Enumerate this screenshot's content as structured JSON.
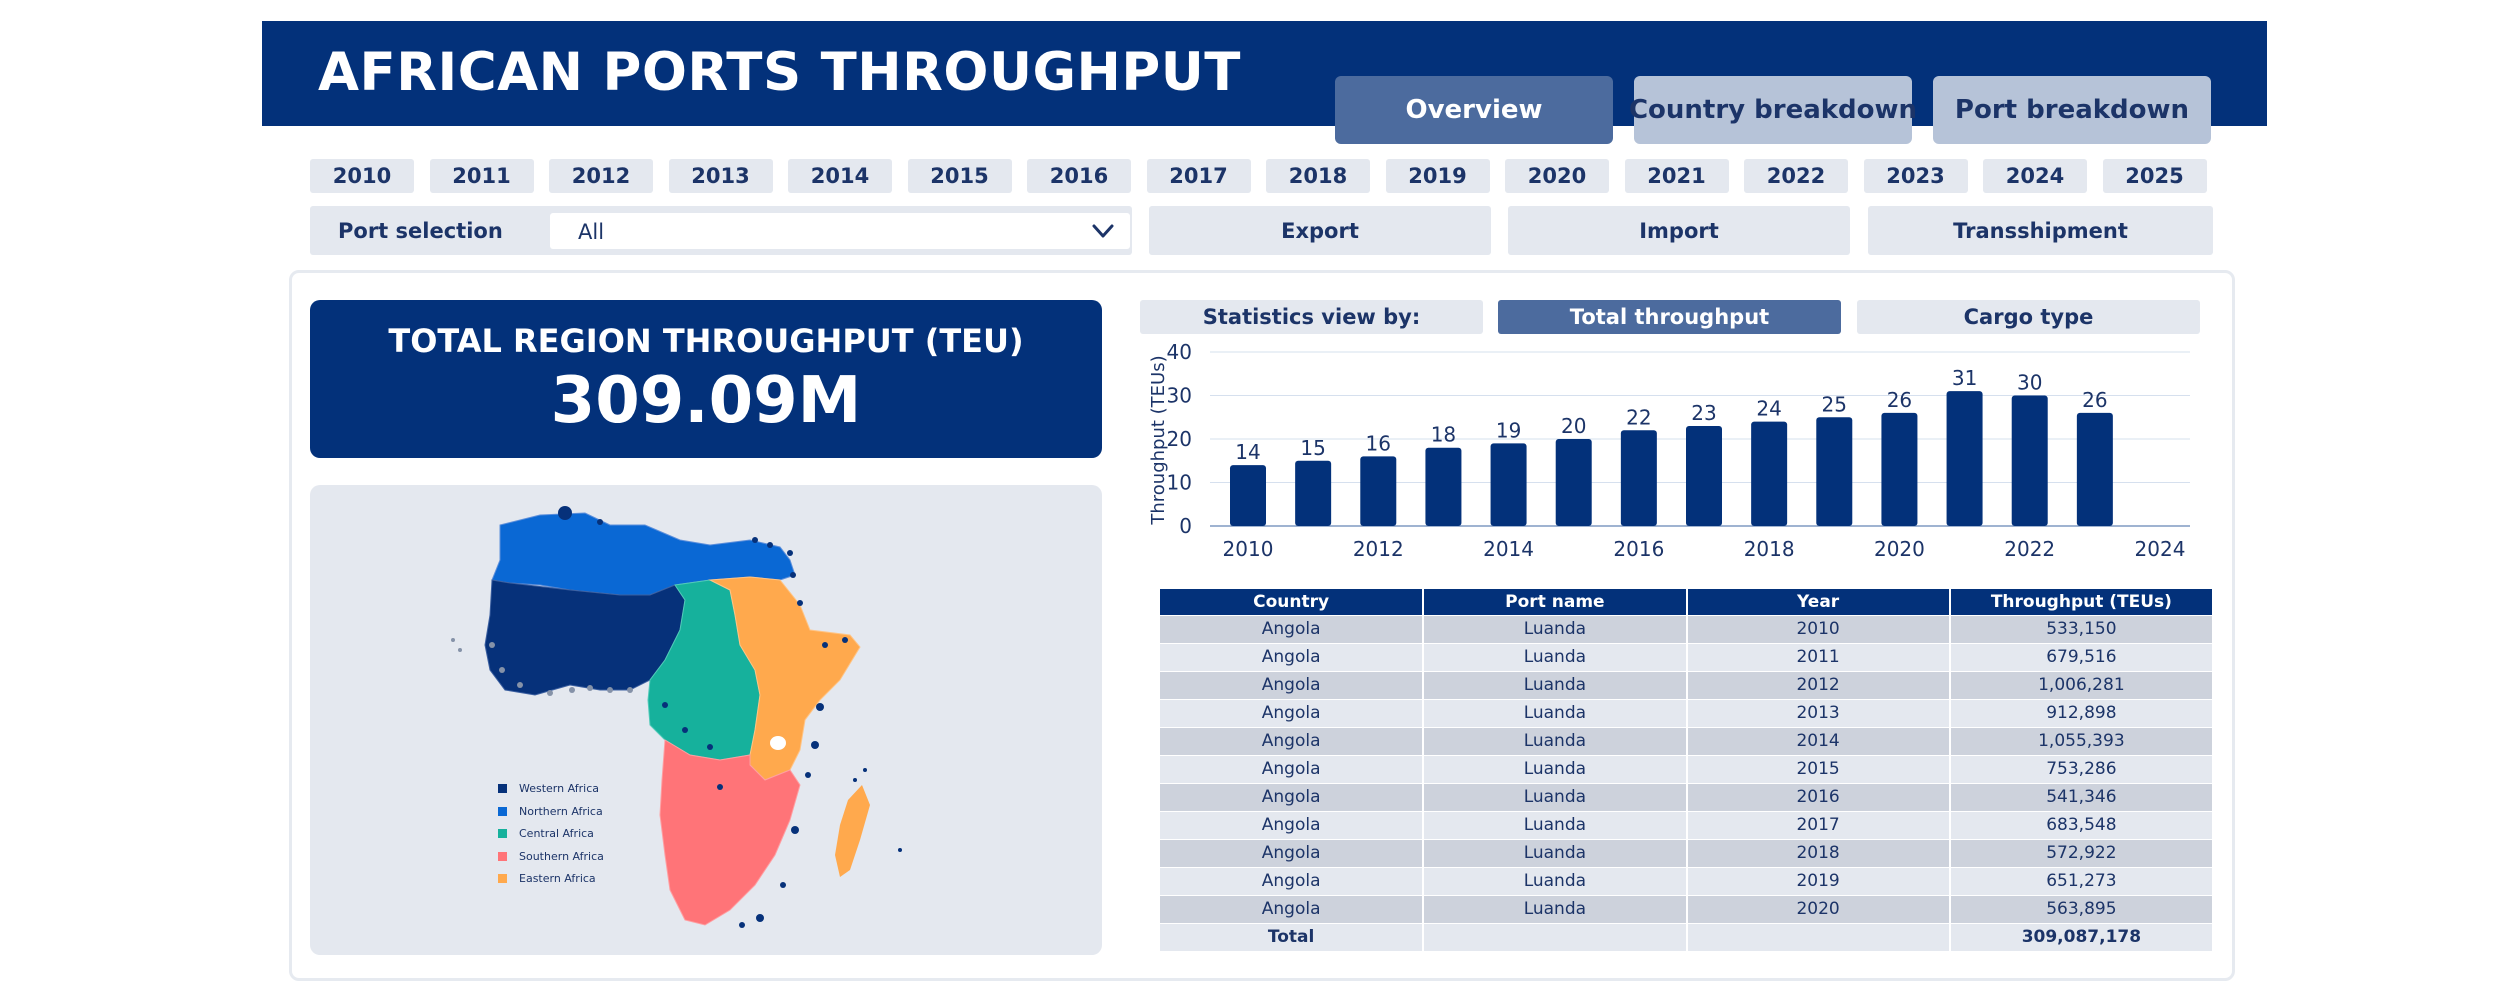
{
  "header": {
    "title": "AFRICAN PORTS THROUGHPUT"
  },
  "tabs": [
    {
      "label": "Overview",
      "active": true
    },
    {
      "label": "Country breakdown",
      "active": false
    },
    {
      "label": "Port breakdown",
      "active": false
    }
  ],
  "years": [
    "2010",
    "2011",
    "2012",
    "2013",
    "2014",
    "2015",
    "2016",
    "2017",
    "2018",
    "2019",
    "2020",
    "2021",
    "2022",
    "2023",
    "2024",
    "2025"
  ],
  "filters": {
    "port_selection_label": "Port selection",
    "port_selection_value": "All",
    "flow_buttons": [
      "Export",
      "Import",
      "Transshipment"
    ]
  },
  "kpi": {
    "label": "TOTAL REGION THROUGHPUT (TEU)",
    "value": "309.09M"
  },
  "map": {
    "legend": [
      {
        "label": "Western Africa",
        "color": "#06317a"
      },
      {
        "label": "Northern Africa",
        "color": "#0a68d4"
      },
      {
        "label": "Central Africa",
        "color": "#16b19c"
      },
      {
        "label": "Southern Africa",
        "color": "#ff7478"
      },
      {
        "label": "Eastern Africa",
        "color": "#ffa94d"
      }
    ]
  },
  "stats": {
    "view_label": "Statistics view by:",
    "options": [
      {
        "label": "Total throughput",
        "active": true
      },
      {
        "label": "Cargo type",
        "active": false
      }
    ]
  },
  "chart_data": {
    "type": "bar",
    "categories": [
      "2010",
      "2011",
      "2012",
      "2013",
      "2014",
      "2015",
      "2016",
      "2017",
      "2018",
      "2019",
      "2020",
      "2021",
      "2022",
      "2023"
    ],
    "values": [
      14,
      15,
      16,
      18,
      19,
      20,
      22,
      23,
      24,
      25,
      26,
      31,
      30,
      26
    ],
    "data_labels": [
      "14",
      "15",
      "16",
      "18",
      "19",
      "20",
      "22",
      "23",
      "24",
      "25",
      "26",
      "31",
      "30",
      "26"
    ],
    "ylabel": "Throughput (TEUs)",
    "xlabel": "",
    "ylim": [
      0,
      40
    ],
    "yticks": [
      "0",
      "10",
      "20",
      "30",
      "40"
    ],
    "xticks": [
      "2010",
      "2012",
      "2014",
      "2016",
      "2018",
      "2020",
      "2022",
      "2024"
    ],
    "xlim": [
      2010,
      2024
    ],
    "grid": true,
    "color": "#03317a"
  },
  "table": {
    "columns": [
      "Country",
      "Port name",
      "Year",
      "Throughput (TEUs)"
    ],
    "rows": [
      [
        "Angola",
        "Luanda",
        "2010",
        "533,150"
      ],
      [
        "Angola",
        "Luanda",
        "2011",
        "679,516"
      ],
      [
        "Angola",
        "Luanda",
        "2012",
        "1,006,281"
      ],
      [
        "Angola",
        "Luanda",
        "2013",
        "912,898"
      ],
      [
        "Angola",
        "Luanda",
        "2014",
        "1,055,393"
      ],
      [
        "Angola",
        "Luanda",
        "2015",
        "753,286"
      ],
      [
        "Angola",
        "Luanda",
        "2016",
        "541,346"
      ],
      [
        "Angola",
        "Luanda",
        "2017",
        "683,548"
      ],
      [
        "Angola",
        "Luanda",
        "2018",
        "572,922"
      ],
      [
        "Angola",
        "Luanda",
        "2019",
        "651,273"
      ],
      [
        "Angola",
        "Luanda",
        "2020",
        "563,895"
      ]
    ],
    "total_label": "Total",
    "total_value": "309,087,178"
  }
}
